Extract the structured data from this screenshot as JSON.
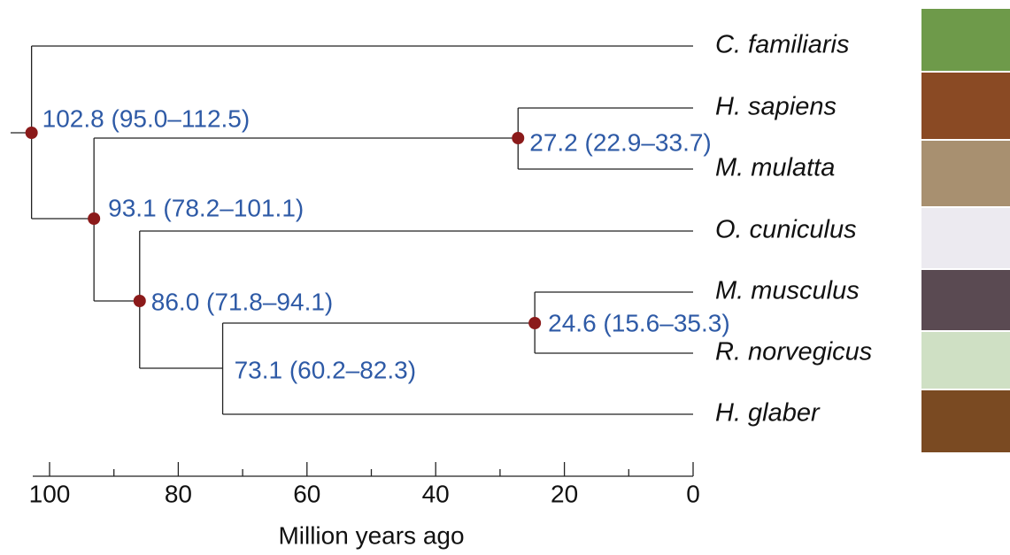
{
  "tree": {
    "tips": [
      {
        "name": "C. familiaris",
        "age": 0
      },
      {
        "name": "H. sapiens",
        "age": 0
      },
      {
        "name": "M. mulatta",
        "age": 0
      },
      {
        "name": "O. cuniculus",
        "age": 0
      },
      {
        "name": "M. musculus",
        "age": 0
      },
      {
        "name": "R. norvegicus",
        "age": 0
      },
      {
        "name": "H. glaber",
        "age": 0
      }
    ],
    "nodes": [
      {
        "age": 102.8,
        "label": "102.8 (95.0–112.5)",
        "dot": true
      },
      {
        "age": 27.2,
        "label": "27.2 (22.9–33.7)",
        "dot": true
      },
      {
        "age": 93.1,
        "label": "93.1 (78.2–101.1)",
        "dot": true
      },
      {
        "age": 86.0,
        "label": "86.0 (71.8–94.1)",
        "dot": true
      },
      {
        "age": 73.1,
        "label": "73.1 (60.2–82.3)",
        "dot": false
      },
      {
        "age": 24.6,
        "label": "24.6 (15.6–35.3)",
        "dot": true
      }
    ],
    "axis": {
      "label": "Million years ago",
      "xlim": [
        0,
        100
      ],
      "xticks": [
        100,
        80,
        60,
        40,
        20,
        0
      ],
      "minor_ticks": [
        90,
        70,
        50,
        30,
        10
      ]
    }
  }
}
